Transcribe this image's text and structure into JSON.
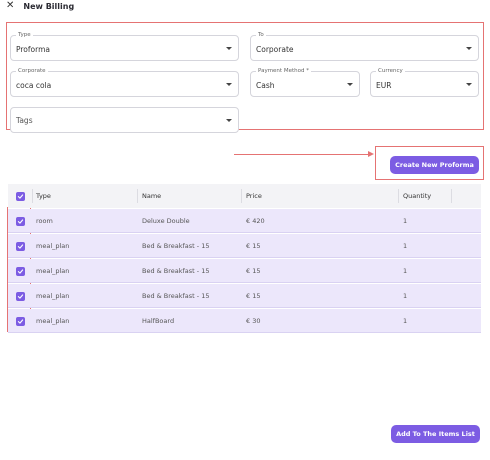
{
  "dialog": {
    "title": "New Billing",
    "close_icon": "close-icon"
  },
  "form": {
    "type": {
      "label": "Type",
      "value": "Proforma"
    },
    "to": {
      "label": "To",
      "value": "Corporate"
    },
    "corporate": {
      "label": "Corporate",
      "value": "coca cola"
    },
    "payment_method": {
      "label": "Payment Method *",
      "value": "Cash"
    },
    "currency": {
      "label": "Currency",
      "value": "EUR"
    },
    "tags": {
      "placeholder": "Tags"
    }
  },
  "actions": {
    "create_proforma_label": "Create New Proforma",
    "add_items_label": "Add To The Items List"
  },
  "table": {
    "headers": [
      "Type",
      "Name",
      "Price",
      "Quantity"
    ],
    "rows": [
      {
        "type": "room",
        "name": "Deluxe Double",
        "price": "€ 420",
        "quantity": "1",
        "checked": true
      },
      {
        "type": "meal_plan",
        "name": "Bed & Breakfast - 15",
        "price": "€ 15",
        "quantity": "1",
        "checked": true
      },
      {
        "type": "meal_plan",
        "name": "Bed & Breakfast - 15",
        "price": "€ 15",
        "quantity": "1",
        "checked": true
      },
      {
        "type": "meal_plan",
        "name": "Bed & Breakfast - 15",
        "price": "€ 15",
        "quantity": "1",
        "checked": true
      },
      {
        "type": "meal_plan",
        "name": "HalfBoard",
        "price": "€ 30",
        "quantity": "1",
        "checked": true
      }
    ]
  },
  "colors": {
    "accent": "#7c5ce3",
    "row_selected": "#ece7fb",
    "annotation": "#e57373"
  }
}
